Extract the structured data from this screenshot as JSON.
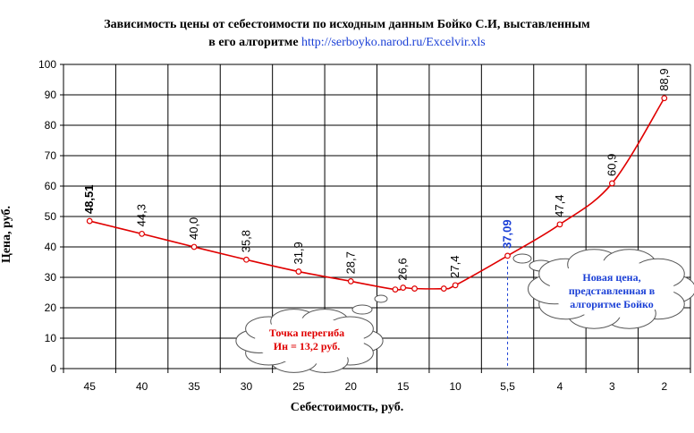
{
  "title_line1": "Зависимость цены от себестоимости по исходным данным Бойко С.И, выставленным",
  "title_line2_prefix": "в его алгоритме",
  "title_link": "http://serboyko.narod.ru/Excelvir.xls",
  "callouts": {
    "inflection": {
      "line1": "Точка перегиба",
      "line2": "Ин = 13,2 руб.",
      "color": "#e00000"
    },
    "new_price": {
      "line1": "Новая цена,",
      "line2": "представленная в",
      "line3": "алгоритме Бойко",
      "color": "#1a3fd6"
    }
  },
  "chart_data": {
    "type": "line",
    "xlabel": "Себестоимость, руб.",
    "ylabel": "Цена, руб.",
    "ylim": [
      0,
      100
    ],
    "yticks": [
      0,
      10,
      20,
      30,
      40,
      50,
      60,
      70,
      80,
      90,
      100
    ],
    "categories": [
      "45",
      "40",
      "35",
      "30",
      "25",
      "20",
      "15",
      "10",
      "5,5",
      "4",
      "3",
      "2"
    ],
    "grid": true,
    "line_color": "#e00000",
    "points": [
      {
        "cat": 0,
        "y": 48.51,
        "label": "48,51",
        "bold": true
      },
      {
        "cat": 1,
        "y": 44.3,
        "label": "44,3"
      },
      {
        "cat": 2,
        "y": 40.0,
        "label": "40,0"
      },
      {
        "cat": 3,
        "y": 35.8,
        "label": "35,8"
      },
      {
        "cat": 4,
        "y": 31.9,
        "label": "31,9"
      },
      {
        "cat": 5,
        "y": 28.7,
        "label": "28,7"
      },
      {
        "cat": 6,
        "y": 26.6,
        "label": "26,6"
      },
      {
        "cat": 7,
        "y": 27.4,
        "label": "27,4"
      },
      {
        "cat": 8,
        "y": 37.09,
        "label": "37,09",
        "bold": true,
        "color": "#1a3fd6"
      },
      {
        "cat": 9,
        "y": 47.4,
        "label": "47,4"
      },
      {
        "cat": 10,
        "y": 60.9,
        "label": "60,9"
      },
      {
        "cat": 11,
        "y": 88.9,
        "label": "88,9"
      }
    ],
    "extra_points": [
      {
        "x": 5.85,
        "y": 26.0
      },
      {
        "x": 6.22,
        "y": 26.3
      },
      {
        "x": 6.78,
        "y": 26.3
      }
    ]
  }
}
